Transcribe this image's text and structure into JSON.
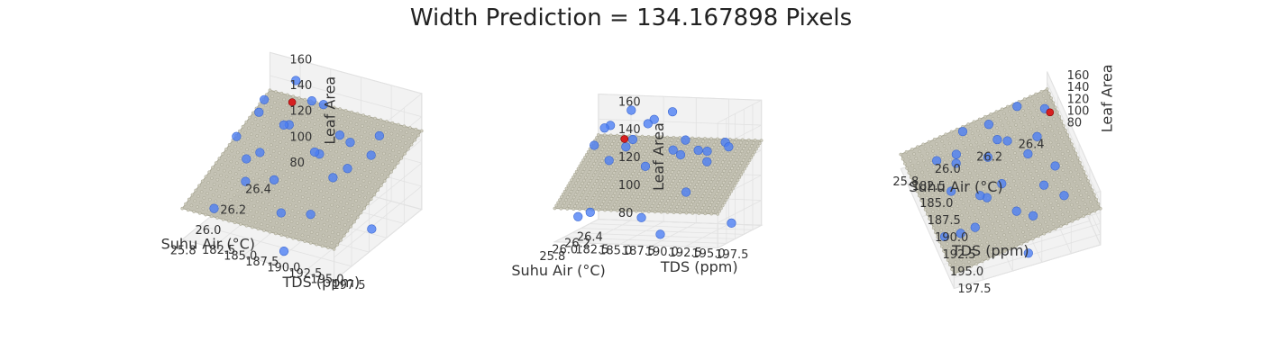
{
  "chart_data": {
    "type": "scatter3d",
    "title": "Width Prediction = 134.167898 Pixels",
    "colors": {
      "observed": "#4a7ef5",
      "prediction": "#d62020",
      "surface": "#b8b6a6",
      "pane": "#f2f2f2",
      "grid": "#dcdcdc"
    },
    "axes": {
      "x": {
        "label": "Suhu Air (°C)",
        "ticks": [
          "25.8",
          "26.0",
          "26.2",
          "26.4"
        ],
        "range": [
          25.75,
          26.45
        ]
      },
      "y": {
        "label": "TDS (ppm)",
        "ticks": [
          "182.5",
          "185.0",
          "187.5",
          "190.0",
          "192.5",
          "195.0",
          "197.5"
        ],
        "range": [
          181,
          198.5
        ]
      },
      "z": {
        "label": "Leaf Area",
        "ticks": [
          "80",
          "100",
          "120",
          "140",
          "160"
        ],
        "range": [
          75,
          165
        ]
      }
    },
    "prediction_point": {
      "x": 26.42,
      "y": 184.0,
      "z": 134.17
    },
    "observed_points": [
      {
        "x": 26.38,
        "y": 185.0,
        "z": 156
      },
      {
        "x": 26.3,
        "y": 188.0,
        "z": 152
      },
      {
        "x": 26.22,
        "y": 190.5,
        "z": 160
      },
      {
        "x": 26.12,
        "y": 184.5,
        "z": 151
      },
      {
        "x": 26.05,
        "y": 189.0,
        "z": 155
      },
      {
        "x": 25.98,
        "y": 193.5,
        "z": 146
      },
      {
        "x": 25.92,
        "y": 187.5,
        "z": 141
      },
      {
        "x": 26.32,
        "y": 195.5,
        "z": 137
      },
      {
        "x": 26.18,
        "y": 186.5,
        "z": 140
      },
      {
        "x": 26.08,
        "y": 191.5,
        "z": 136
      },
      {
        "x": 26.01,
        "y": 183.5,
        "z": 139
      },
      {
        "x": 25.88,
        "y": 196.5,
        "z": 141
      },
      {
        "x": 26.26,
        "y": 193.0,
        "z": 132
      },
      {
        "x": 26.15,
        "y": 197.0,
        "z": 138
      },
      {
        "x": 25.95,
        "y": 185.5,
        "z": 130
      },
      {
        "x": 25.86,
        "y": 190.0,
        "z": 129
      },
      {
        "x": 26.35,
        "y": 190.5,
        "z": 126
      },
      {
        "x": 26.1,
        "y": 195.0,
        "z": 128
      },
      {
        "x": 25.84,
        "y": 194.5,
        "z": 112
      },
      {
        "x": 26.28,
        "y": 182.8,
        "z": 145
      },
      {
        "x": 25.9,
        "y": 182.5,
        "z": 90
      },
      {
        "x": 26.02,
        "y": 188.5,
        "z": 88
      },
      {
        "x": 25.8,
        "y": 192.0,
        "z": 82
      },
      {
        "x": 26.2,
        "y": 181.8,
        "z": 86
      },
      {
        "x": 26.12,
        "y": 197.5,
        "z": 84
      }
    ]
  }
}
